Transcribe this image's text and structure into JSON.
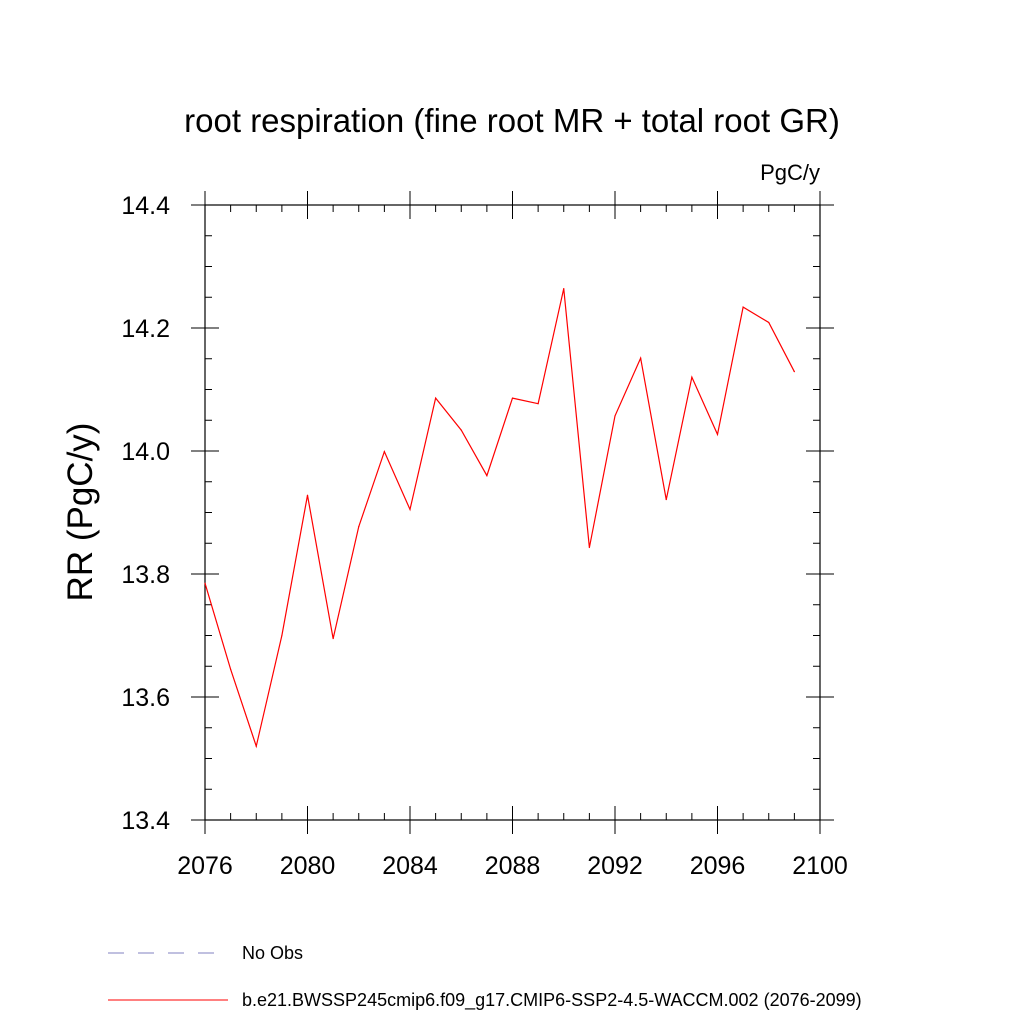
{
  "chart_data": {
    "type": "line",
    "title": "root respiration (fine root MR + total root GR)",
    "units": "PgC/y",
    "ylabel": "RR  (PgC/y)",
    "xlabel": "",
    "xlim": [
      2076,
      2100
    ],
    "ylim": [
      13.4,
      14.4
    ],
    "x_ticks": [
      2076,
      2080,
      2084,
      2088,
      2092,
      2096,
      2100
    ],
    "x_tick_labels": [
      "2076",
      "2080",
      "2084",
      "2088",
      "2092",
      "2096",
      "2100"
    ],
    "y_ticks": [
      13.4,
      13.6,
      13.8,
      14.0,
      14.2,
      14.4
    ],
    "y_tick_labels": [
      "13.4",
      "13.6",
      "13.8",
      "14.0",
      "14.2",
      "14.4"
    ],
    "x_minor_step": 1,
    "y_minor_step": 0.05,
    "grid": false,
    "legend_position": "bottom-left",
    "series": [
      {
        "name": "b.e21.BWSSP245cmip6.f09_g17.CMIP6-SSP2-4.5-WACCM.002 (2076-2099)",
        "color": "#ff0000",
        "style": "solid",
        "x": [
          2076,
          2077,
          2078,
          2079,
          2080,
          2081,
          2082,
          2083,
          2084,
          2085,
          2086,
          2087,
          2088,
          2089,
          2090,
          2091,
          2092,
          2093,
          2094,
          2095,
          2096,
          2097,
          2098,
          2099
        ],
        "values": [
          13.785,
          13.645,
          13.52,
          13.7,
          13.928,
          13.695,
          13.877,
          13.999,
          13.905,
          14.086,
          14.034,
          13.96,
          14.086,
          14.077,
          14.264,
          13.843,
          14.057,
          14.151,
          13.921,
          14.12,
          14.027,
          14.234,
          14.209,
          14.129
        ]
      }
    ],
    "legend": [
      {
        "label": "No Obs",
        "color": "#8080c0",
        "style": "dashed"
      },
      {
        "label": "b.e21.BWSSP245cmip6.f09_g17.CMIP6-SSP2-4.5-WACCM.002 (2076-2099)",
        "color": "#ff0000",
        "style": "solid"
      }
    ]
  }
}
